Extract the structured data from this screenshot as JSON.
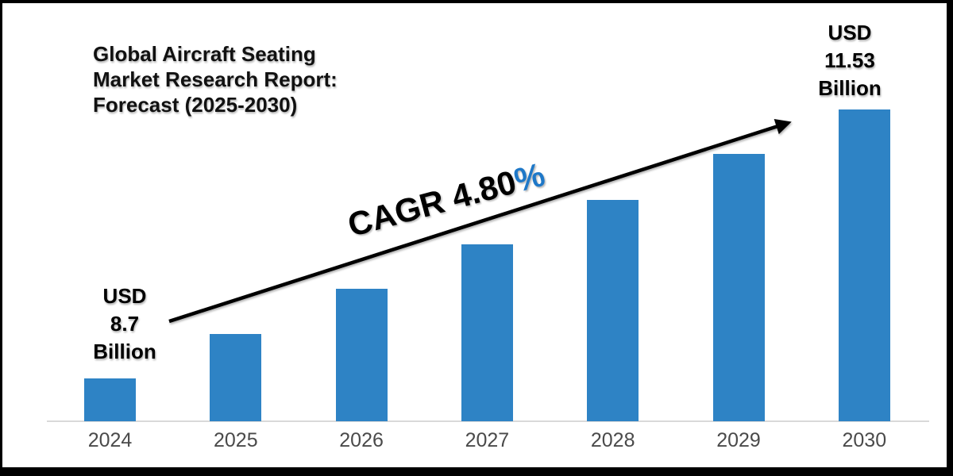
{
  "header": {
    "title": "Global Aircraft Seating\nMarket Research Report:\nForecast (2025-2030)"
  },
  "labels": {
    "start": "USD\n8.7\nBillion",
    "end": "USD\n11.53\nBillion"
  },
  "annotation": {
    "text": "CAGR 4.80",
    "percent": "%",
    "percent_color": "#1E78C8"
  },
  "colors": {
    "bar": "#2E83C5",
    "axis_line": "#D9D9D9",
    "tick_text": "#4A4A4A",
    "frame": "#000000",
    "background": "#FFFFFF"
  },
  "chart_data": {
    "type": "bar",
    "title": "Global Aircraft Seating Market Research Report: Forecast (2025-2030)",
    "categories": [
      "2024",
      "2025",
      "2026",
      "2027",
      "2028",
      "2029",
      "2030"
    ],
    "values": [
      8.7,
      9.17,
      9.64,
      10.11,
      10.58,
      11.06,
      11.53
    ],
    "unit": "USD Billion",
    "labeled_points": [
      {
        "category": "2024",
        "label": "USD 8.7 Billion"
      },
      {
        "category": "2030",
        "label": "USD 11.53 Billion"
      }
    ],
    "annotation": "CAGR 4.80%",
    "xlabel": "",
    "ylabel": "",
    "grid": false,
    "legend": false,
    "bar_color": "#2E83C5",
    "value_range_shown": [
      8.7,
      11.53
    ]
  }
}
